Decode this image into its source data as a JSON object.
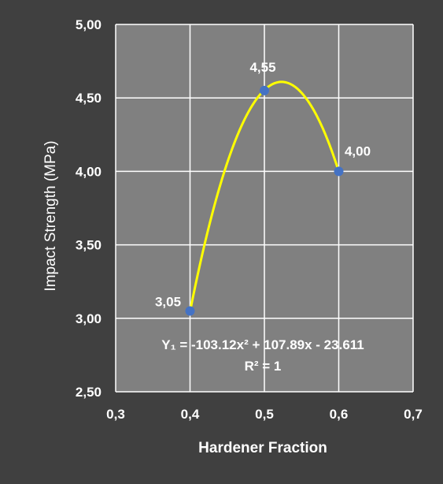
{
  "chart_data": {
    "type": "scatter",
    "xlabel": "Hardener Fraction",
    "ylabel": "Impact  Strength (MPa)",
    "xlim": [
      0.3,
      0.7
    ],
    "ylim": [
      2.5,
      5.0
    ],
    "x_ticks": [
      "0,3",
      "0,4",
      "0,5",
      "0,6",
      "0,7"
    ],
    "y_ticks": [
      "2,50",
      "3,00",
      "3,50",
      "4,00",
      "4,50",
      "5,00"
    ],
    "grid": true,
    "series": [
      {
        "x": [
          0.4,
          0.5,
          0.6
        ],
        "y": [
          3.05,
          4.55,
          4.0
        ],
        "labels": [
          "3,05",
          "4,55",
          "4,00"
        ]
      }
    ],
    "trendline": {
      "type": "polynomial",
      "order": 2,
      "coefficients": [
        -103.12,
        107.89,
        -23.611
      ],
      "equation_text": "Y₁ = -103.12x² + 107.89x - 23.611",
      "r2_text": "R² = 1"
    },
    "colors": {
      "background": "#404040",
      "plot_area": "#808080",
      "gridline": "#ffffff",
      "marker": "#4472c4",
      "trendline": "#ffff00",
      "text": "#ffffff"
    }
  }
}
